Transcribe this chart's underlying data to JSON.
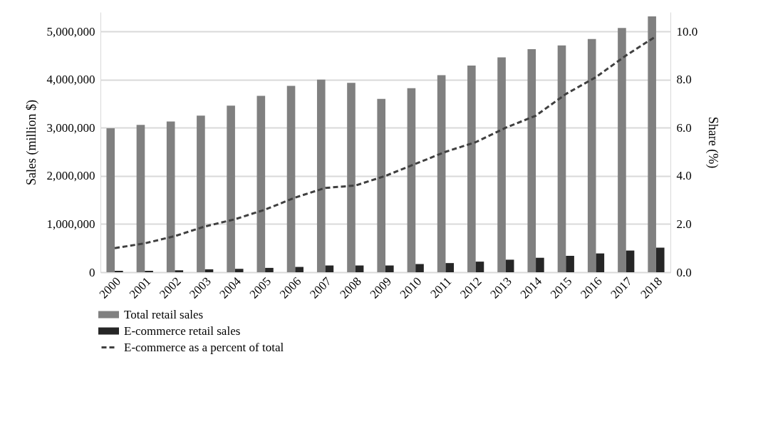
{
  "chart_data": {
    "type": "bar",
    "categories": [
      "2000",
      "2001",
      "2002",
      "2003",
      "2004",
      "2005",
      "2006",
      "2007",
      "2008",
      "2009",
      "2010",
      "2011",
      "2012",
      "2013",
      "2014",
      "2015",
      "2016",
      "2017",
      "2018"
    ],
    "series": [
      {
        "name": "Total retail sales",
        "color": "#808080",
        "values": [
          2990000,
          3060000,
          3130000,
          3250000,
          3460000,
          3660000,
          3870000,
          4000000,
          3930000,
          3600000,
          3820000,
          4090000,
          4290000,
          4460000,
          4630000,
          4710000,
          4840000,
          5070000,
          5310000
        ]
      },
      {
        "name": "E-commerce retail sales",
        "color": "#262626",
        "values": [
          30000,
          30000,
          40000,
          60000,
          70000,
          90000,
          110000,
          140000,
          140000,
          140000,
          170000,
          190000,
          220000,
          260000,
          300000,
          340000,
          390000,
          450000,
          510000
        ]
      },
      {
        "name": "E-commerce as a percent of total",
        "type": "line",
        "axis": "y2",
        "color": "#404040",
        "line_style": "dashed",
        "values": [
          1.0,
          1.2,
          1.5,
          1.9,
          2.2,
          2.6,
          3.1,
          3.5,
          3.6,
          4.0,
          4.5,
          5.0,
          5.4,
          6.0,
          6.5,
          7.4,
          8.1,
          9.0,
          9.8
        ]
      }
    ],
    "ylabel": "Sales (million $)",
    "y2label": "Share (%)",
    "ylim": [
      0,
      5400000
    ],
    "yticks": [
      {
        "value": 0,
        "label": "0"
      },
      {
        "value": 1000000,
        "label": "1,000,000"
      },
      {
        "value": 2000000,
        "label": "2,000,000"
      },
      {
        "value": 3000000,
        "label": "3,000,000"
      },
      {
        "value": 4000000,
        "label": "4,000,000"
      },
      {
        "value": 5000000,
        "label": "5,000,000"
      }
    ],
    "y2lim": [
      0,
      10.8
    ],
    "y2ticks": [
      {
        "value": 0,
        "label": "0.0"
      },
      {
        "value": 2,
        "label": "2.0"
      },
      {
        "value": 4,
        "label": "4.0"
      },
      {
        "value": 6,
        "label": "6.0"
      },
      {
        "value": 8,
        "label": "8.0"
      },
      {
        "value": 10,
        "label": "10.0"
      }
    ],
    "grid": "y",
    "legend": "bottom"
  }
}
